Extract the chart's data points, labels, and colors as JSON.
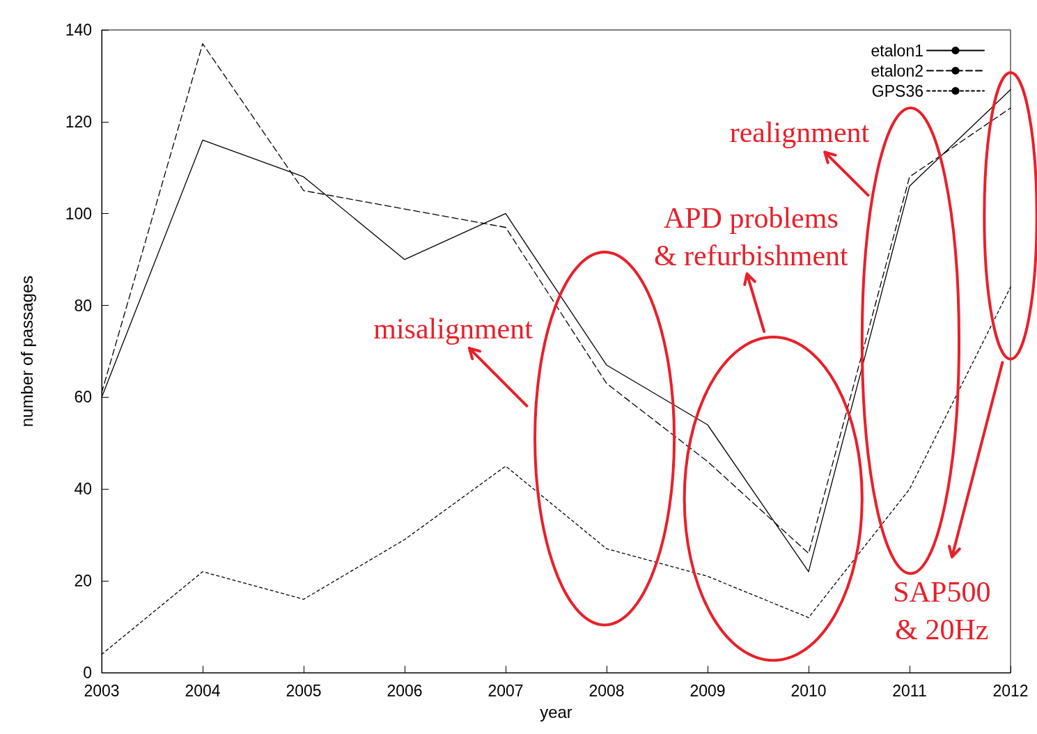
{
  "chart_data": {
    "type": "line",
    "xlabel": "year",
    "ylabel": "number of passages",
    "x": [
      2003,
      2004,
      2005,
      2006,
      2007,
      2008,
      2009,
      2010,
      2011,
      2012
    ],
    "xlim": [
      2003,
      2012
    ],
    "xticks": [
      2003,
      2004,
      2005,
      2006,
      2007,
      2008,
      2009,
      2010,
      2011,
      2012
    ],
    "ylim": [
      0,
      140
    ],
    "yticks": [
      0,
      20,
      40,
      60,
      80,
      100,
      120,
      140
    ],
    "grid": false,
    "legend": "top right",
    "marker": "none",
    "series": [
      {
        "name": "etalon1",
        "color": "#000000",
        "line_style": "solid",
        "values": [
          60,
          116,
          108,
          90,
          100,
          67,
          54,
          22,
          106,
          127
        ]
      },
      {
        "name": "etalon2",
        "color": "#000000",
        "line_style": "dashed",
        "values": [
          61,
          137,
          105,
          101,
          97,
          63,
          46,
          26,
          108,
          123
        ]
      },
      {
        "name": "GPS36",
        "color": "#000000",
        "line_style": "dotted",
        "values": [
          4,
          22,
          16,
          29,
          45,
          27,
          21,
          12,
          40,
          84
        ]
      }
    ],
    "annotations": [
      "misalignment",
      "APD problems\n& refurbishment",
      "realignment",
      "SAP500\n& 20Hz"
    ]
  }
}
